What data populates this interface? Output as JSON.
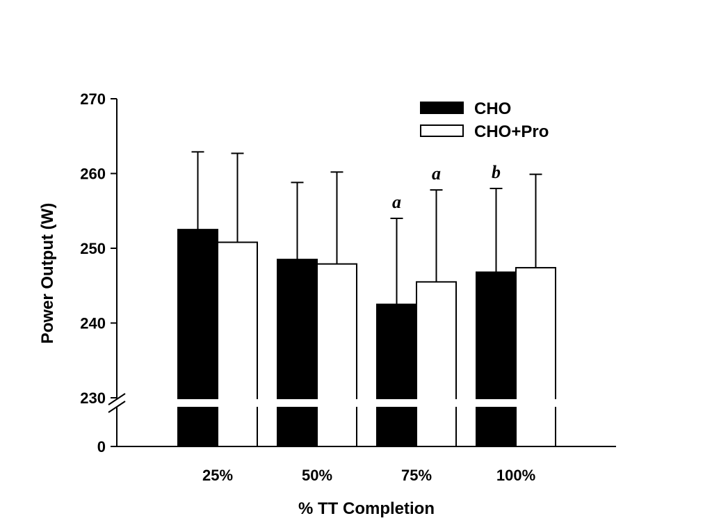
{
  "chart_data": {
    "type": "bar",
    "categories": [
      "25%",
      "50%",
      "75%",
      "100%"
    ],
    "xlabel": "% TT Completion",
    "ylabel": "Power Output (W)",
    "ylim": [
      230,
      270
    ],
    "axis_break": {
      "lower_tick": "0",
      "broken_between": [
        0,
        230
      ]
    },
    "y_ticks": [
      "270",
      "260",
      "250",
      "240",
      "230"
    ],
    "series": [
      {
        "name": "CHO",
        "fill": "#000000",
        "values": [
          252.5,
          248.5,
          242.5,
          246.8
        ],
        "error": [
          10.4,
          10.3,
          11.5,
          11.2
        ],
        "sig": [
          "",
          "",
          "a",
          "b"
        ]
      },
      {
        "name": "CHO+Pro",
        "fill": "#ffffff",
        "values": [
          250.8,
          247.9,
          245.5,
          247.4
        ],
        "error": [
          11.9,
          12.3,
          12.3,
          12.5
        ],
        "sig": [
          "",
          "",
          "a",
          ""
        ]
      }
    ],
    "legend_position": "top-right",
    "grid": false
  }
}
